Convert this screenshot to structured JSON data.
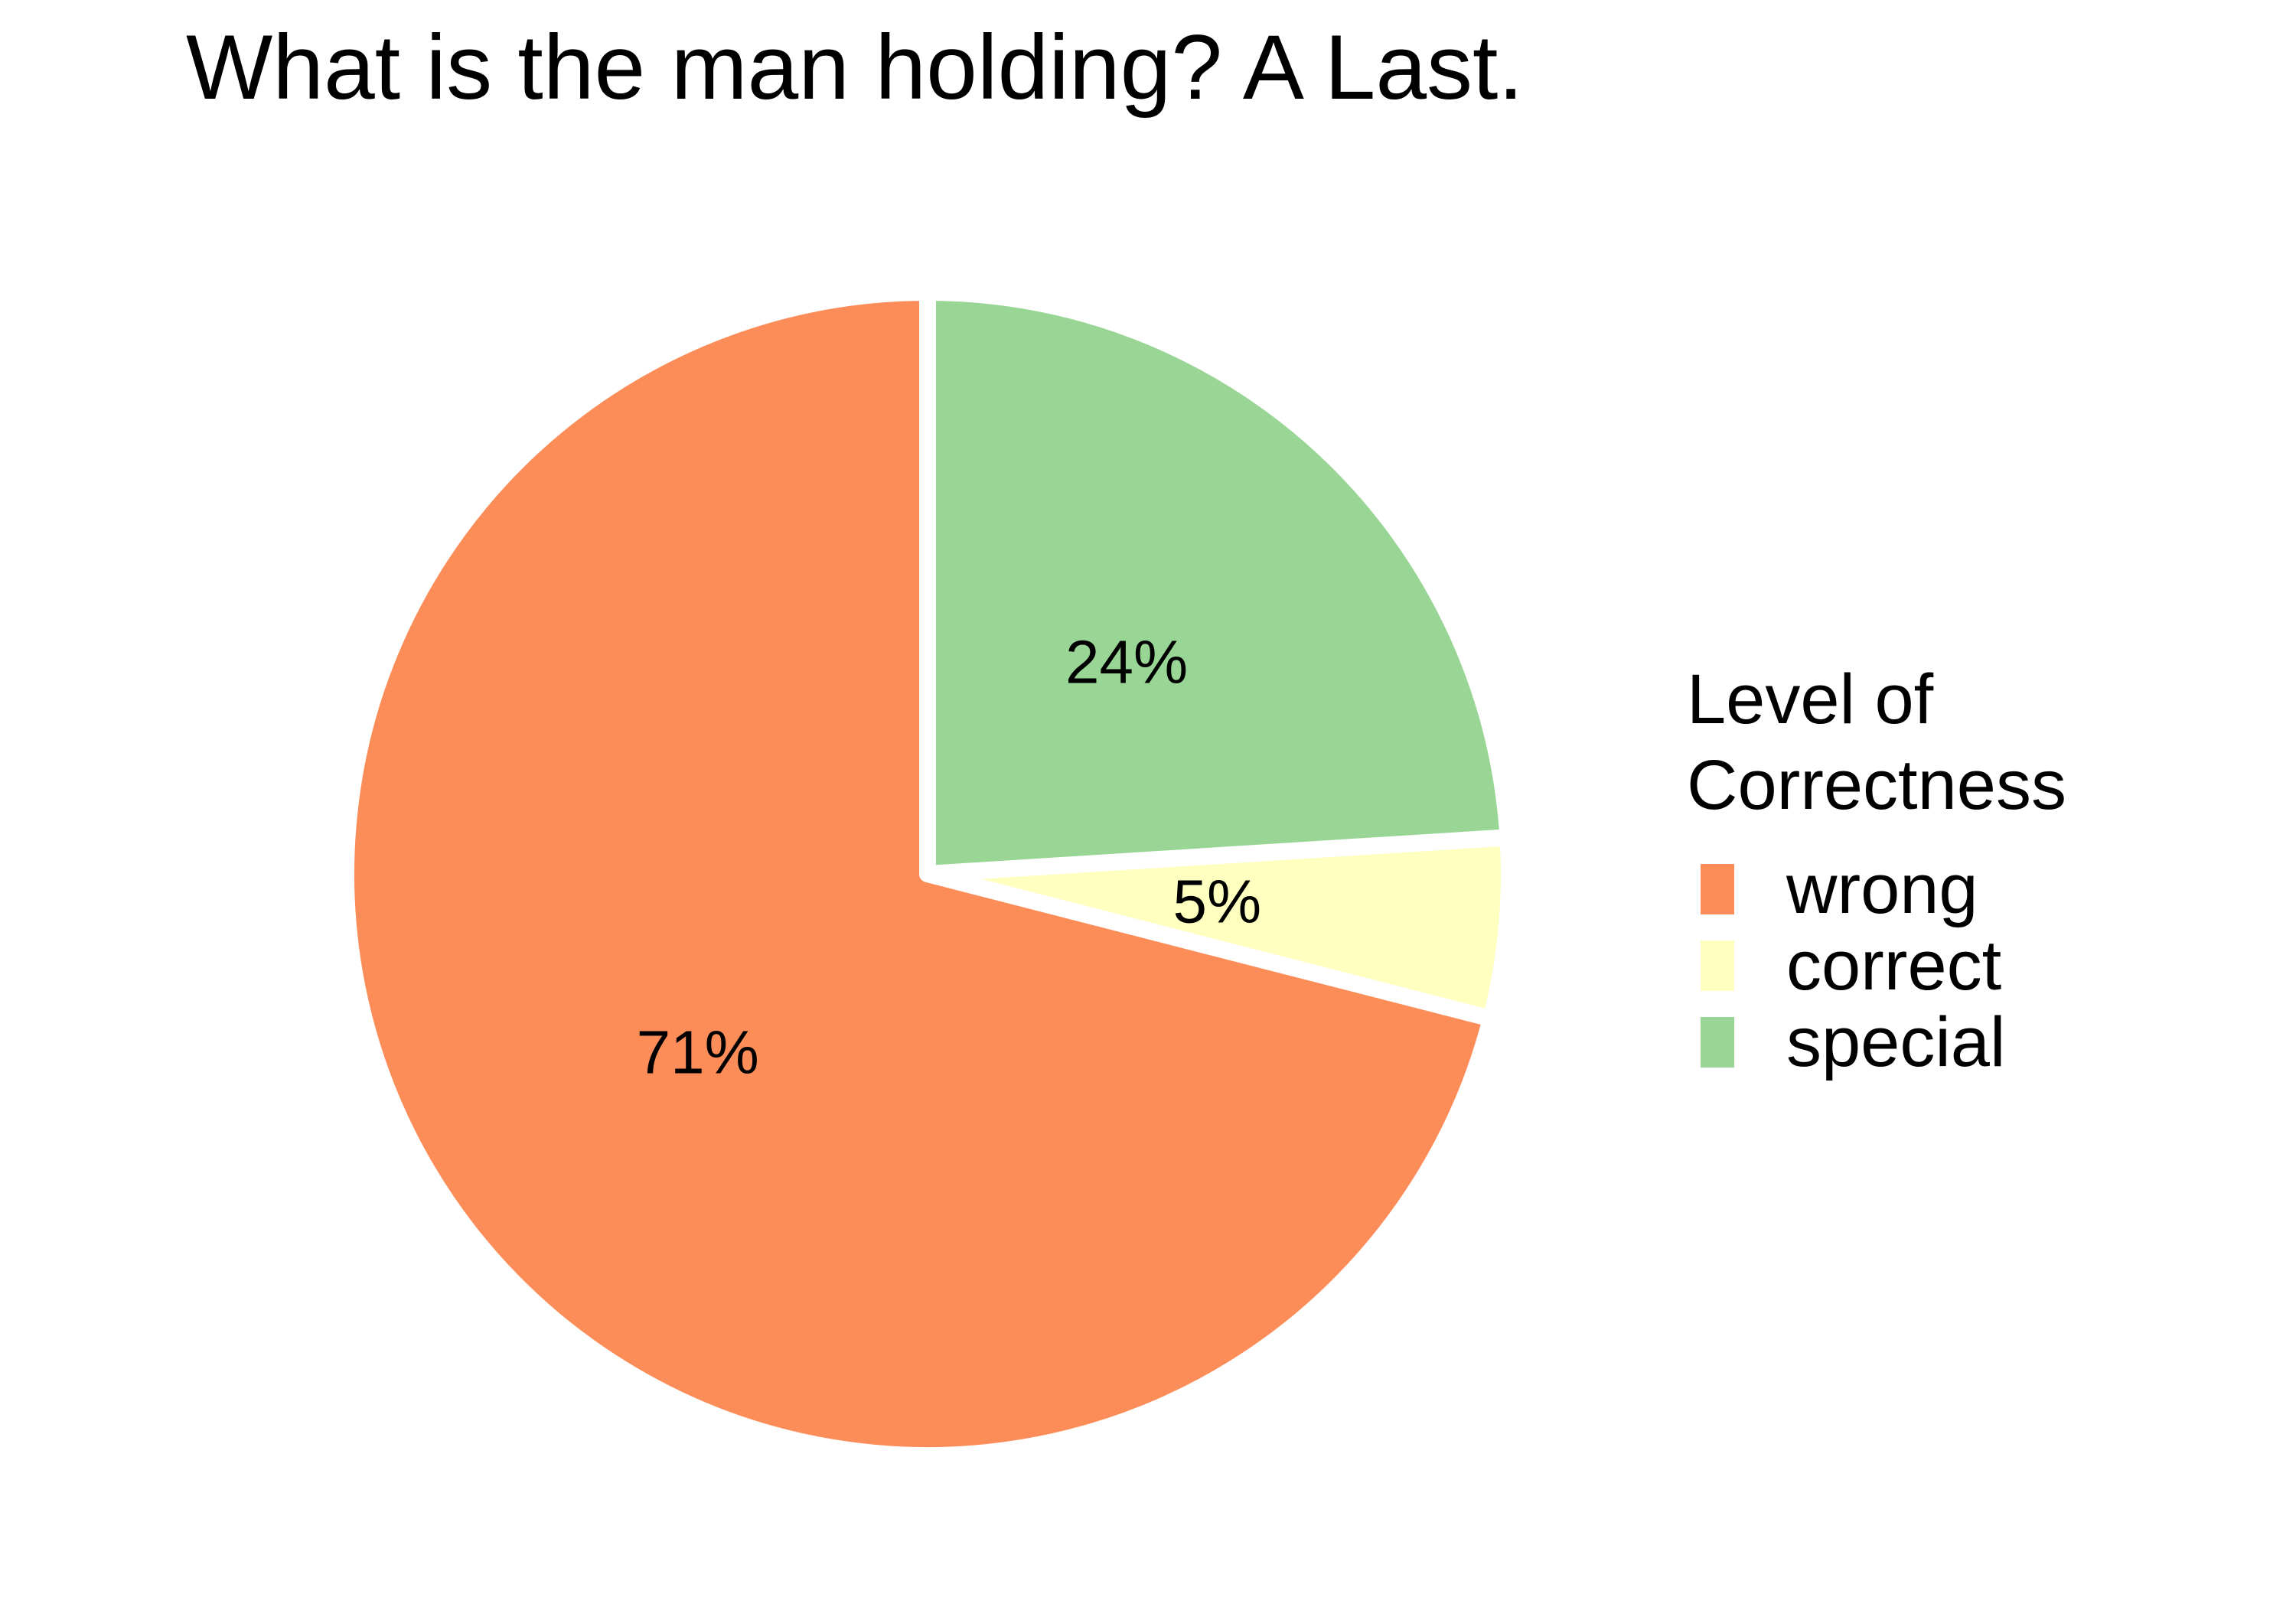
{
  "chart_data": {
    "type": "pie",
    "title": "What is the man holding? A Last.",
    "legend_title_lines": [
      "Level of",
      "Correctness"
    ],
    "legend_position": "right",
    "start": "top",
    "direction": "counterclockwise",
    "slices": [
      {
        "label": "wrong",
        "value": 71,
        "display": "71%",
        "color": "#FC8D59"
      },
      {
        "label": "correct",
        "value": 5,
        "display": "5%",
        "color": "#FFFFBF"
      },
      {
        "label": "special",
        "value": 24,
        "display": "24%",
        "color": "#99D594"
      }
    ]
  }
}
